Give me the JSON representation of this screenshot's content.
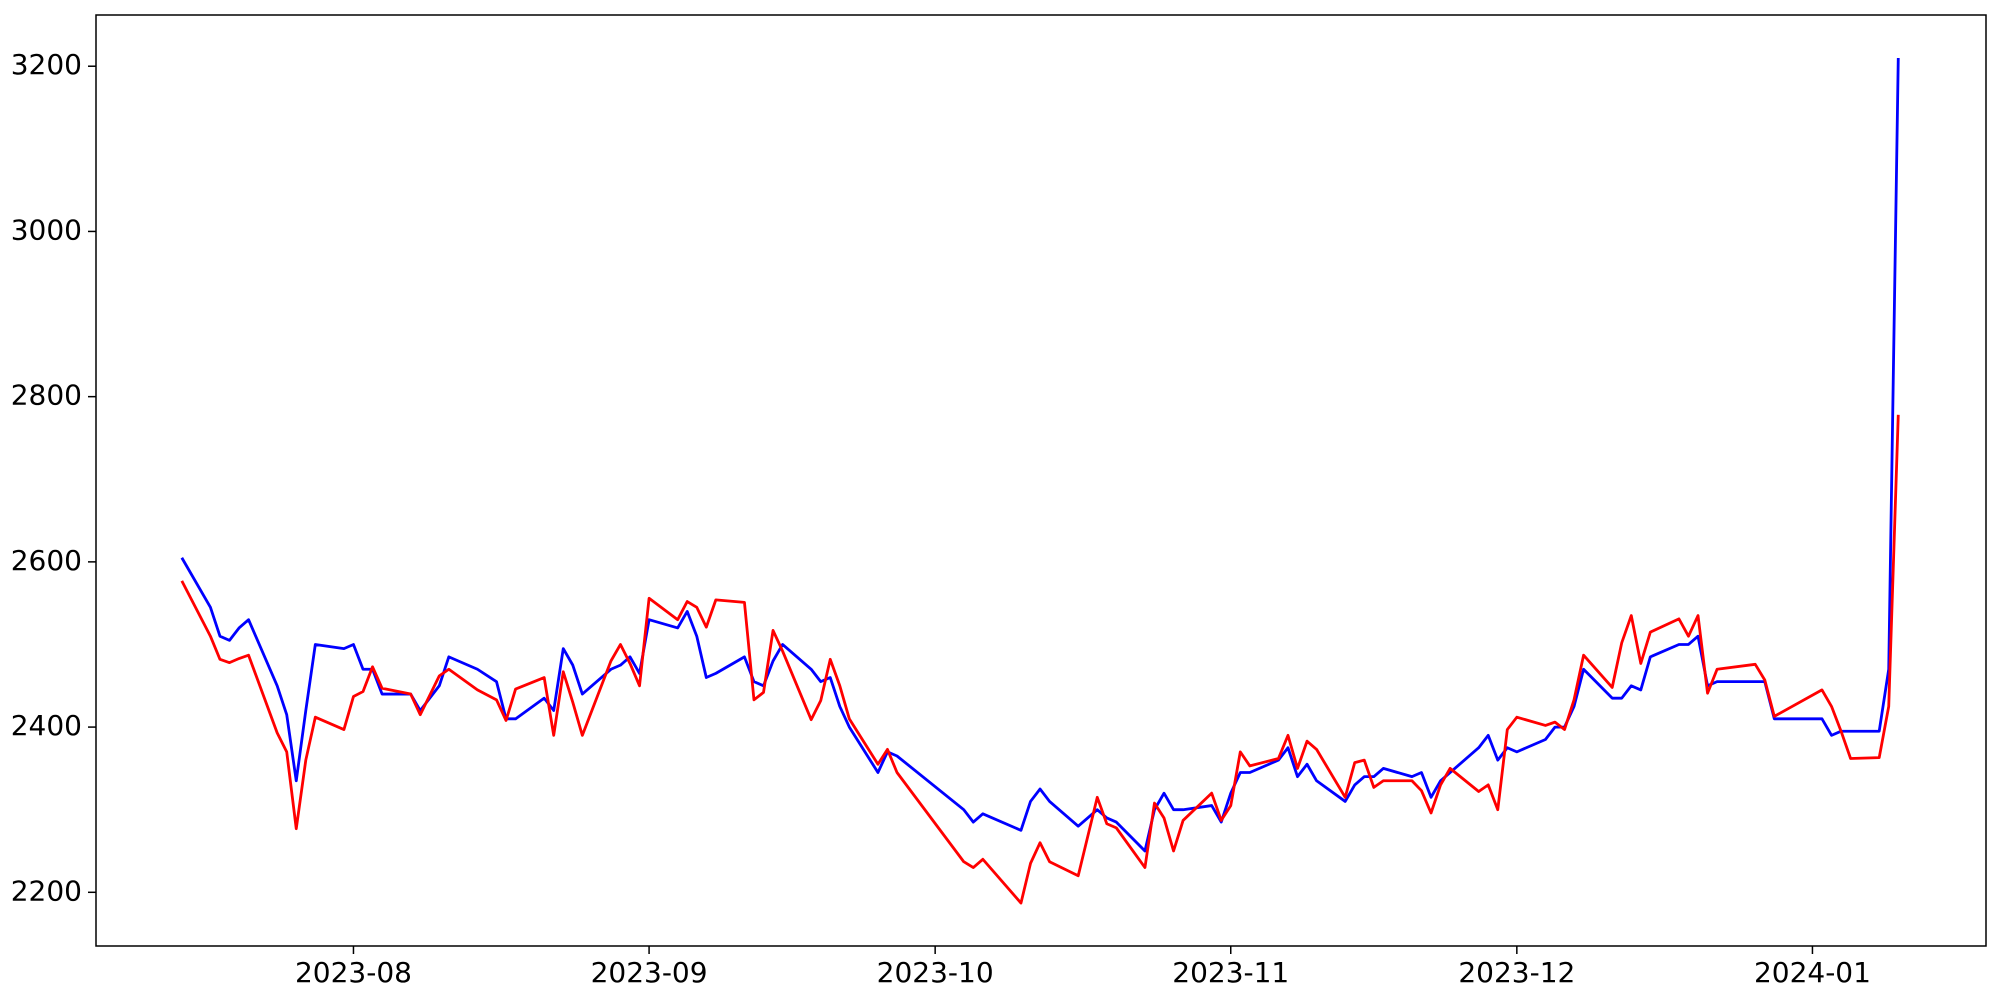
{
  "chart_data": {
    "type": "line",
    "x": [
      13,
      16,
      17,
      18,
      19,
      20,
      23,
      24,
      25,
      26,
      27,
      30,
      31,
      32,
      33,
      34,
      37,
      38,
      40,
      41,
      44,
      46,
      47,
      48,
      51,
      52,
      53,
      54,
      55,
      58,
      59,
      60,
      61,
      62,
      65,
      66,
      67,
      68,
      69,
      72,
      73,
      74,
      75,
      76,
      79,
      80,
      81,
      82,
      83,
      86,
      87,
      88,
      95,
      96,
      97,
      101,
      102,
      103,
      104,
      107,
      109,
      110,
      111,
      114,
      115,
      116,
      117,
      118,
      121,
      122,
      123,
      124,
      125,
      128,
      129,
      130,
      131,
      132,
      135,
      136,
      137,
      138,
      139,
      142,
      143,
      144,
      145,
      146,
      149,
      150,
      151,
      152,
      153,
      156,
      157,
      158,
      159,
      160,
      163,
      164,
      165,
      166,
      167,
      170,
      171,
      172,
      173,
      174,
      178,
      179,
      180,
      185,
      186,
      187,
      188,
      191,
      192,
      193
    ],
    "series": [
      {
        "name": "blue",
        "color": "#0000ff",
        "values": [
          2605,
          2545,
          2510,
          2505,
          2520,
          2530,
          2450,
          2415,
          2335,
          2420,
          2500,
          2495,
          2500,
          2470,
          2470,
          2440,
          2440,
          2420,
          2450,
          2485,
          2470,
          2455,
          2410,
          2410,
          2435,
          2420,
          2495,
          2475,
          2440,
          2470,
          2475,
          2485,
          2465,
          2530,
          2520,
          2540,
          2510,
          2460,
          2465,
          2485,
          2455,
          2450,
          2480,
          2500,
          2470,
          2455,
          2460,
          2425,
          2400,
          2345,
          2370,
          2365,
          2300,
          2285,
          2295,
          2275,
          2310,
          2325,
          2310,
          2280,
          2300,
          2290,
          2285,
          2250,
          2300,
          2320,
          2300,
          2300,
          2305,
          2285,
          2320,
          2345,
          2345,
          2360,
          2375,
          2340,
          2355,
          2335,
          2310,
          2330,
          2340,
          2340,
          2350,
          2340,
          2345,
          2315,
          2335,
          2345,
          2375,
          2390,
          2360,
          2375,
          2370,
          2385,
          2400,
          2400,
          2425,
          2470,
          2435,
          2435,
          2450,
          2445,
          2485,
          2500,
          2500,
          2510,
          2450,
          2455,
          2455,
          2455,
          2410,
          2410,
          2390,
          2395,
          2395,
          2395,
          2470,
          3210
        ]
      },
      {
        "name": "red",
        "color": "#ff0000",
        "values": [
          2577,
          2510,
          2482,
          2478,
          2483,
          2487,
          2393,
          2370,
          2277,
          2360,
          2412,
          2397,
          2437,
          2443,
          2473,
          2447,
          2440,
          2415,
          2462,
          2470,
          2445,
          2433,
          2408,
          2446,
          2460,
          2390,
          2467,
          2430,
          2390,
          2480,
          2500,
          2477,
          2450,
          2556,
          2530,
          2552,
          2545,
          2521,
          2554,
          2551,
          2433,
          2442,
          2517,
          2492,
          2409,
          2432,
          2482,
          2450,
          2410,
          2355,
          2373,
          2345,
          2237,
          2230,
          2240,
          2187,
          2235,
          2260,
          2237,
          2220,
          2315,
          2283,
          2278,
          2230,
          2308,
          2290,
          2250,
          2287,
          2320,
          2287,
          2305,
          2370,
          2353,
          2362,
          2390,
          2350,
          2383,
          2373,
          2315,
          2357,
          2360,
          2327,
          2335,
          2335,
          2323,
          2296,
          2330,
          2350,
          2322,
          2330,
          2300,
          2397,
          2412,
          2402,
          2406,
          2397,
          2433,
          2487,
          2448,
          2502,
          2535,
          2477,
          2515,
          2531,
          2510,
          2535,
          2441,
          2470,
          2476,
          2457,
          2413,
          2445,
          2425,
          2395,
          2362,
          2363,
          2425,
          2778
        ]
      }
    ],
    "xlim": [
      4,
      202.2
    ],
    "xticks": [
      {
        "value": 31,
        "label": "2023-08"
      },
      {
        "value": 62,
        "label": "2023-09"
      },
      {
        "value": 92,
        "label": "2023-10"
      },
      {
        "value": 123,
        "label": "2023-11"
      },
      {
        "value": 153,
        "label": "2023-12"
      },
      {
        "value": 184,
        "label": "2024-01"
      }
    ],
    "ylim": [
      2135,
      3262
    ],
    "yticks": [
      2200,
      2400,
      2600,
      2800,
      3000,
      3200
    ]
  }
}
